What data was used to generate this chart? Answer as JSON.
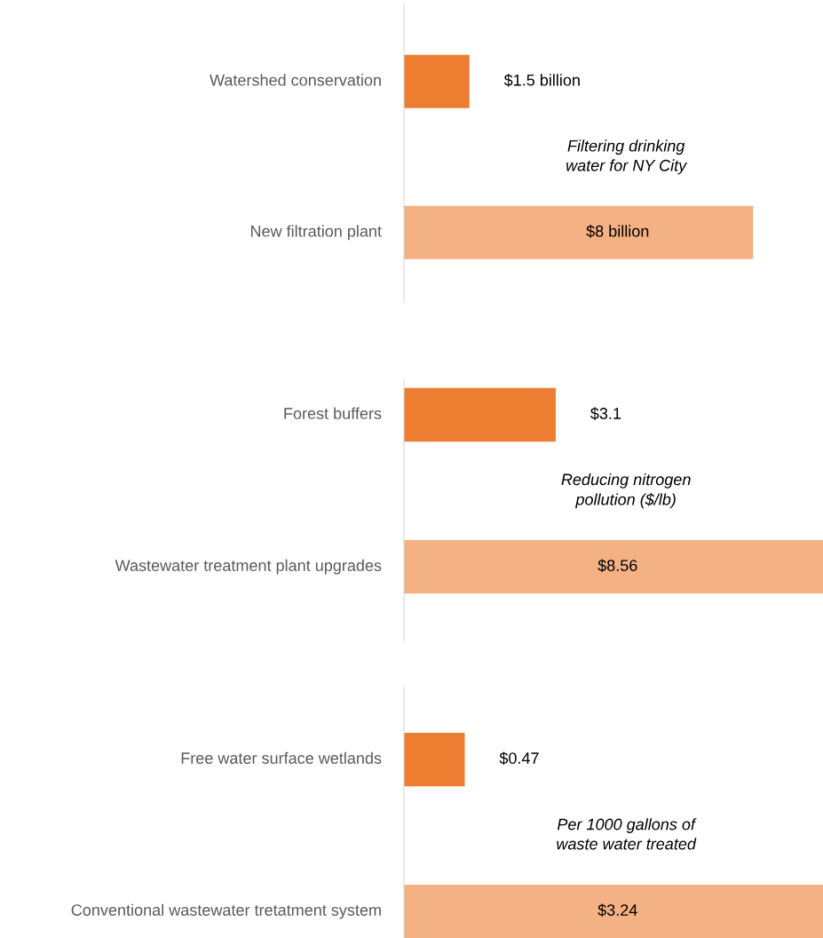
{
  "chart_data": [
    {
      "type": "bar",
      "orientation": "horizontal",
      "categories": [
        "Watershed conservation",
        "New filtration plant"
      ],
      "values": [
        1.5,
        8
      ],
      "colors": [
        "#ed7d31",
        "#f4b183"
      ],
      "value_labels": [
        "$1.5 billion",
        "$8 billion"
      ],
      "annotations": [
        "Filtering drinking\nwater for NY City"
      ]
    },
    {
      "type": "bar",
      "orientation": "horizontal",
      "categories": [
        "Forest buffers",
        "Wastewater treatment plant upgrades"
      ],
      "values": [
        3.1,
        8.56
      ],
      "colors": [
        "#ed7d31",
        "#f4b183"
      ],
      "value_labels": [
        "$3.1",
        "$8.56"
      ],
      "annotations": [
        "Reducing nitrogen\npollution ($/lb)"
      ]
    },
    {
      "type": "bar",
      "orientation": "horizontal",
      "categories": [
        "Free water surface wetlands",
        "Conventional wastewater tretatment system"
      ],
      "values": [
        0.47,
        3.24
      ],
      "colors": [
        "#ed7d31",
        "#f4b183"
      ],
      "value_labels": [
        "$0.47",
        "$3.24"
      ],
      "annotations": [
        "Per 1000 gallons of\nwaste water treated"
      ]
    }
  ]
}
